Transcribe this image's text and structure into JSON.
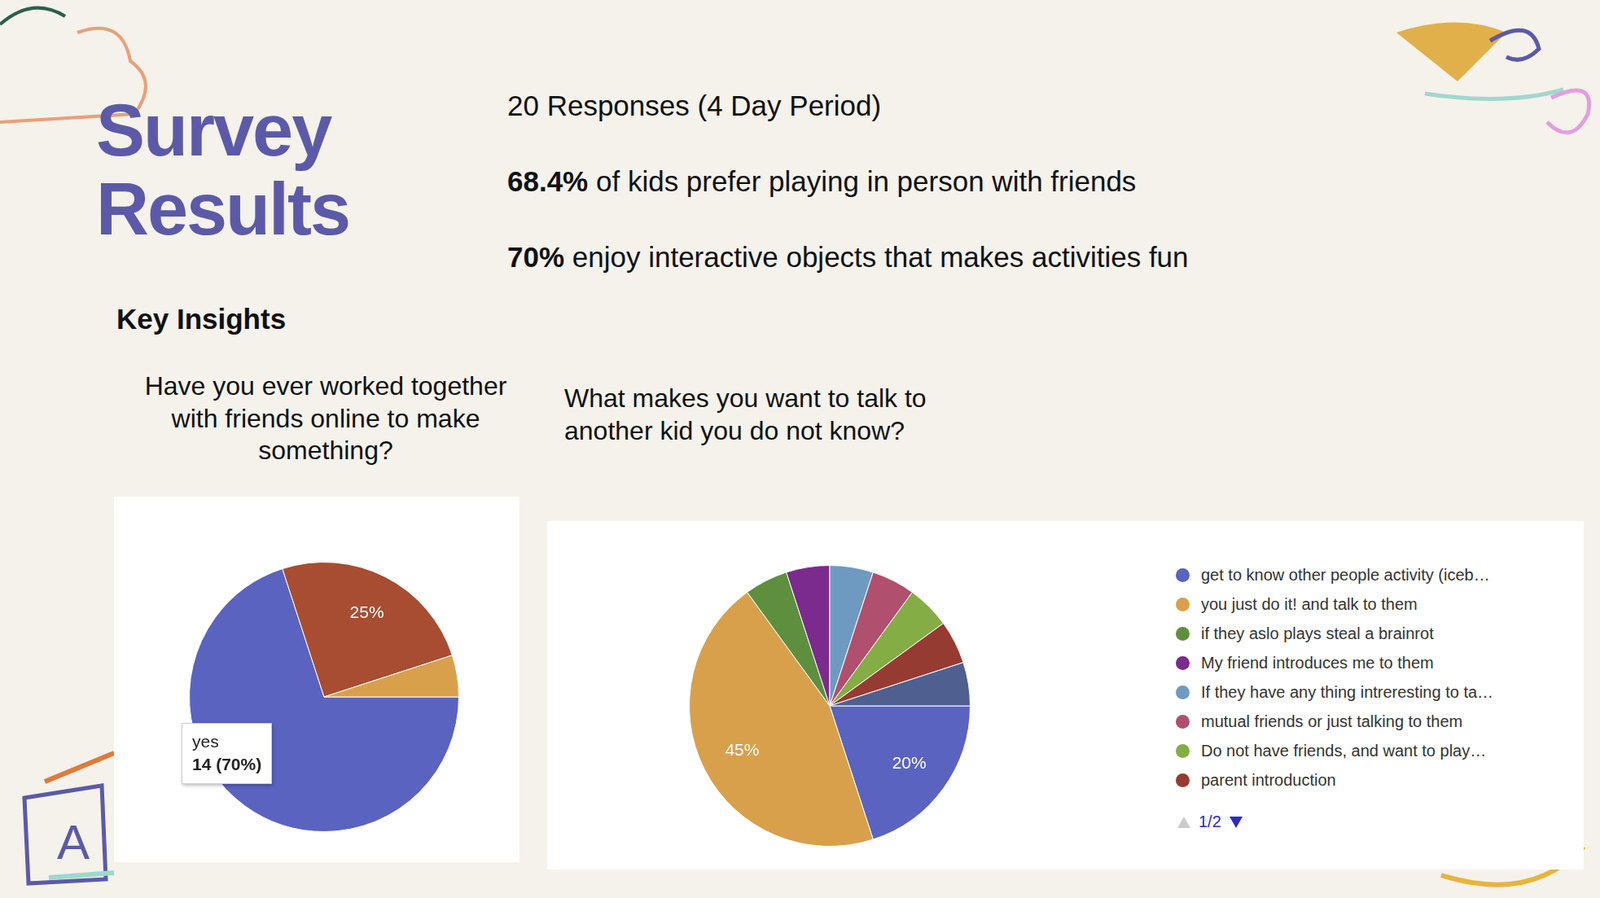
{
  "header": {
    "title": [
      "Survey",
      "Results"
    ],
    "subtitle": "Key Insights"
  },
  "stats": [
    {
      "bold": "",
      "text": "20 Responses (4 Day Period)"
    },
    {
      "bold": "68.4%",
      "text": " of kids prefer playing in person with friends"
    },
    {
      "bold": "70%",
      "text": " enjoy interactive objects that makes activities fun"
    }
  ],
  "decor_letter": "A",
  "chart_data": [
    {
      "type": "pie",
      "title": "Have you ever worked together with friends online to make something?",
      "categories": [
        "yes",
        null,
        null
      ],
      "values": [
        70,
        25,
        5
      ],
      "colors": [
        "#5a63bf",
        "#a84d31",
        "#d9a04b"
      ],
      "data_labels": true,
      "value_labels": [
        null,
        "25%",
        null
      ],
      "annotation": {
        "label": "yes",
        "text": "14 (70%)"
      }
    },
    {
      "type": "pie",
      "title": "What makes you want to talk to another kid you do not know?",
      "categories": [
        "get to know other people activity (iceb…",
        "you just do it! and talk to them",
        "if they aslo plays steal a brainrot",
        "My friend introduces me to them",
        "If they have any thing intreresting to ta…",
        "mutual friends or just talking to them",
        "Do not have friends, and want to play…",
        "parent introduction",
        null
      ],
      "values": [
        20,
        45,
        5,
        5,
        5,
        5,
        5,
        5,
        5
      ],
      "colors": [
        "#5a63bf",
        "#d9a04b",
        "#5e8f3e",
        "#7b2a8d",
        "#6e9ac1",
        "#b0506e",
        "#84ad45",
        "#963b32",
        "#4f5f8f"
      ],
      "data_labels": true,
      "value_labels": [
        "20%",
        "45%",
        null,
        null,
        null,
        null,
        null,
        null,
        null
      ],
      "legend": "right",
      "legend_pager": "1/2"
    }
  ]
}
